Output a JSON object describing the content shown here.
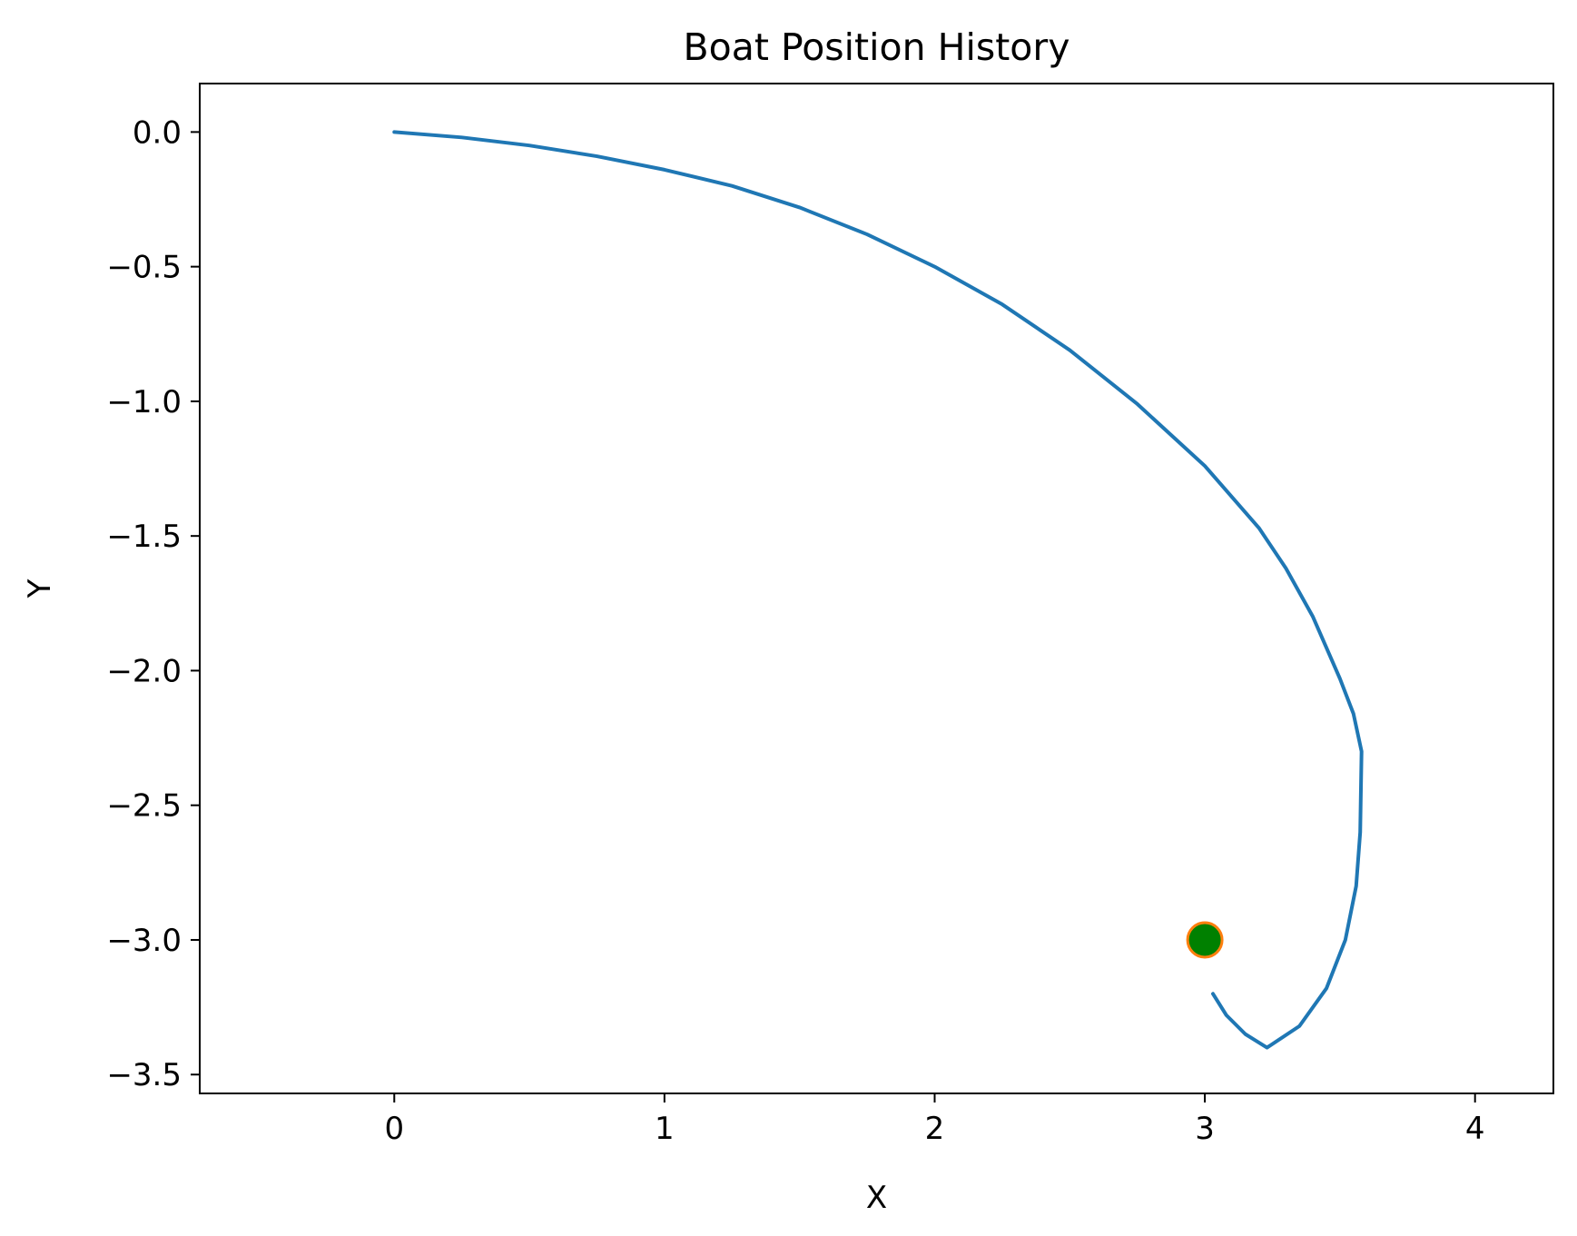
{
  "chart_data": {
    "type": "line",
    "title": "Boat Position History",
    "xlabel": "X",
    "ylabel": "Y",
    "xlim": [
      -0.72,
      4.29
    ],
    "ylim": [
      -3.57,
      0.18
    ],
    "xticks": [
      0,
      1,
      2,
      3,
      4
    ],
    "xtick_labels": [
      "0",
      "1",
      "2",
      "3",
      "4"
    ],
    "yticks": [
      0.0,
      -0.5,
      -1.0,
      -1.5,
      -2.0,
      -2.5,
      -3.0,
      -3.5
    ],
    "ytick_labels": [
      "0.0",
      "−0.5",
      "−1.0",
      "−1.5",
      "−2.0",
      "−2.5",
      "−3.0",
      "−3.5"
    ],
    "grid": false,
    "series": [
      {
        "type": "line",
        "color": "#1f77b4",
        "points": [
          [
            0.0,
            0.0
          ],
          [
            0.25,
            -0.02
          ],
          [
            0.5,
            -0.05
          ],
          [
            0.75,
            -0.09
          ],
          [
            1.0,
            -0.14
          ],
          [
            1.25,
            -0.2
          ],
          [
            1.5,
            -0.28
          ],
          [
            1.75,
            -0.38
          ],
          [
            2.0,
            -0.5
          ],
          [
            2.25,
            -0.64
          ],
          [
            2.5,
            -0.81
          ],
          [
            2.75,
            -1.01
          ],
          [
            3.0,
            -1.24
          ],
          [
            3.2,
            -1.47
          ],
          [
            3.3,
            -1.62
          ],
          [
            3.4,
            -1.8
          ],
          [
            3.5,
            -2.03
          ],
          [
            3.55,
            -2.16
          ],
          [
            3.58,
            -2.3
          ],
          [
            3.575,
            -2.6
          ],
          [
            3.56,
            -2.8
          ],
          [
            3.52,
            -3.0
          ],
          [
            3.45,
            -3.18
          ],
          [
            3.35,
            -3.32
          ],
          [
            3.23,
            -3.4
          ],
          [
            3.15,
            -3.35
          ],
          [
            3.08,
            -3.28
          ],
          [
            3.03,
            -3.2
          ]
        ]
      },
      {
        "type": "scatter",
        "face_color": "#008000",
        "edge_color": "#ff7f0e",
        "points": [
          [
            3.0,
            -3.0
          ]
        ]
      }
    ]
  }
}
